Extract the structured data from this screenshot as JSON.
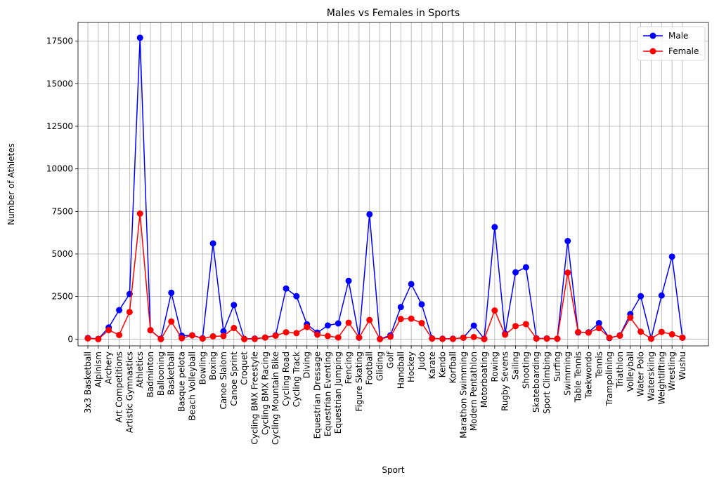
{
  "chart_data": {
    "type": "line",
    "title": "Males vs Females in Sports",
    "xlabel": "Sport",
    "ylabel": "Number of Athletes",
    "ylim": [
      -400,
      18600
    ],
    "yticks": [
      0,
      2500,
      5000,
      7500,
      10000,
      12500,
      15000,
      17500
    ],
    "ytick_labels": [
      "0",
      "2500",
      "5000",
      "7500",
      "10000",
      "12500",
      "15000",
      "17500"
    ],
    "grid": true,
    "legend_position": "top-right",
    "categories": [
      "3x3 Basketball",
      "Alpinism",
      "Archery",
      "Art Competitions",
      "Artistic Gymnastics",
      "Athletics",
      "Badminton",
      "Ballooning",
      "Basketball",
      "Basque pelota",
      "Beach Volleyball",
      "Bowling",
      "Boxing",
      "Canoe Slalom",
      "Canoe Sprint",
      "Croquet",
      "Cycling BMX Freestyle",
      "Cycling BMX Racing",
      "Cycling Mountain Bike",
      "Cycling Road",
      "Cycling Track",
      "Diving",
      "Equestrian Dressage",
      "Equestrian Eventing",
      "Equestrian Jumping",
      "Fencing",
      "Figure Skating",
      "Football",
      "Gliding",
      "Golf",
      "Handball",
      "Hockey",
      "Judo",
      "Karate",
      "Kendo",
      "Korfball",
      "Marathon Swimming",
      "Modern Pentathlon",
      "Motorboating",
      "Rowing",
      "Rugby Sevens",
      "Sailing",
      "Shooting",
      "Skateboarding",
      "Sport Climbing",
      "Surfing",
      "Swimming",
      "Table Tennis",
      "Taekwondo",
      "Tennis",
      "Trampolining",
      "Triathlon",
      "Volleyball",
      "Water Polo",
      "Waterskiing",
      "Weightlifting",
      "Wrestling",
      "Wushu"
    ],
    "series": [
      {
        "name": "Male",
        "color": "#0000ff",
        "values": [
          60,
          10,
          680,
          1700,
          2650,
          17700,
          520,
          20,
          2720,
          200,
          220,
          50,
          5620,
          460,
          2000,
          10,
          30,
          90,
          220,
          2970,
          2520,
          870,
          380,
          800,
          920,
          3420,
          80,
          7330,
          10,
          220,
          1880,
          3230,
          2040,
          40,
          20,
          20,
          80,
          790,
          20,
          6580,
          320,
          3920,
          4220,
          40,
          40,
          20,
          5760,
          390,
          400,
          940,
          60,
          220,
          1470,
          2520,
          30,
          2560,
          4840,
          80
        ]
      },
      {
        "name": "Female",
        "color": "#ff0000",
        "values": [
          40,
          0,
          530,
          240,
          1590,
          7370,
          520,
          0,
          1030,
          50,
          220,
          30,
          160,
          180,
          650,
          0,
          10,
          90,
          200,
          400,
          350,
          710,
          260,
          180,
          90,
          960,
          90,
          1120,
          0,
          140,
          1180,
          1200,
          940,
          30,
          10,
          10,
          80,
          120,
          0,
          1680,
          260,
          760,
          880,
          30,
          30,
          20,
          3900,
          410,
          380,
          640,
          80,
          200,
          1260,
          430,
          20,
          420,
          280,
          80
        ]
      }
    ]
  }
}
